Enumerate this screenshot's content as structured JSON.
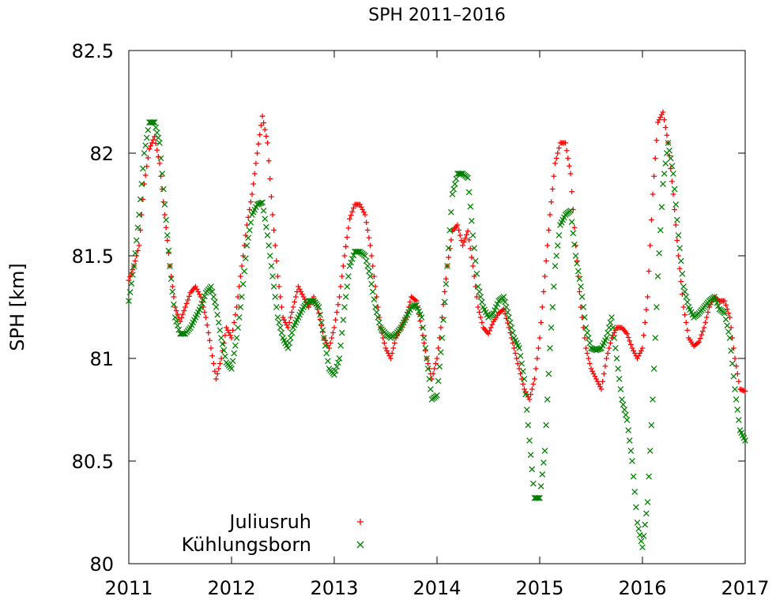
{
  "chart_data": {
    "type": "scatter",
    "title": "SPH 2011–2016",
    "xlabel": "",
    "ylabel": "SPH [km]",
    "xlim": [
      2011,
      2017
    ],
    "ylim": [
      80,
      82.5
    ],
    "x_ticks": [
      "2011",
      "2012",
      "2013",
      "2014",
      "2015",
      "2016",
      "2017"
    ],
    "y_ticks": [
      "80",
      "80.5",
      "81",
      "81.5",
      "82",
      "82.5"
    ],
    "grid": false,
    "legend_position": "bottom-left",
    "series": [
      {
        "name": "Juliusruh",
        "color": "#ff0000",
        "marker": "plus",
        "points": [
          [
            2011.0,
            81.38
          ],
          [
            2011.05,
            81.45
          ],
          [
            2011.1,
            81.55
          ],
          [
            2011.15,
            81.85
          ],
          [
            2011.2,
            82.02
          ],
          [
            2011.25,
            82.08
          ],
          [
            2011.3,
            81.95
          ],
          [
            2011.35,
            81.7
          ],
          [
            2011.4,
            81.45
          ],
          [
            2011.45,
            81.25
          ],
          [
            2011.5,
            81.18
          ],
          [
            2011.55,
            81.25
          ],
          [
            2011.6,
            81.32
          ],
          [
            2011.65,
            81.35
          ],
          [
            2011.7,
            81.3
          ],
          [
            2011.75,
            81.2
          ],
          [
            2011.8,
            81.05
          ],
          [
            2011.85,
            80.9
          ],
          [
            2011.9,
            81.0
          ],
          [
            2011.95,
            81.15
          ],
          [
            2012.0,
            81.1
          ],
          [
            2012.05,
            81.25
          ],
          [
            2012.1,
            81.45
          ],
          [
            2012.15,
            81.65
          ],
          [
            2012.2,
            81.8
          ],
          [
            2012.25,
            82.0
          ],
          [
            2012.3,
            82.18
          ],
          [
            2012.35,
            82.05
          ],
          [
            2012.4,
            81.7
          ],
          [
            2012.45,
            81.4
          ],
          [
            2012.5,
            81.2
          ],
          [
            2012.55,
            81.15
          ],
          [
            2012.6,
            81.25
          ],
          [
            2012.65,
            81.35
          ],
          [
            2012.7,
            81.3
          ],
          [
            2012.75,
            81.25
          ],
          [
            2012.8,
            81.3
          ],
          [
            2012.85,
            81.22
          ],
          [
            2012.9,
            81.1
          ],
          [
            2012.95,
            81.05
          ],
          [
            2013.0,
            81.15
          ],
          [
            2013.05,
            81.3
          ],
          [
            2013.1,
            81.5
          ],
          [
            2013.15,
            81.68
          ],
          [
            2013.2,
            81.75
          ],
          [
            2013.25,
            81.75
          ],
          [
            2013.3,
            81.7
          ],
          [
            2013.35,
            81.55
          ],
          [
            2013.4,
            81.35
          ],
          [
            2013.45,
            81.15
          ],
          [
            2013.5,
            81.05
          ],
          [
            2013.55,
            81.0
          ],
          [
            2013.6,
            81.1
          ],
          [
            2013.65,
            81.15
          ],
          [
            2013.7,
            81.2
          ],
          [
            2013.75,
            81.3
          ],
          [
            2013.8,
            81.28
          ],
          [
            2013.85,
            81.15
          ],
          [
            2013.9,
            81.0
          ],
          [
            2013.95,
            80.9
          ],
          [
            2014.0,
            81.0
          ],
          [
            2014.05,
            81.2
          ],
          [
            2014.1,
            81.45
          ],
          [
            2014.15,
            81.62
          ],
          [
            2014.2,
            81.65
          ],
          [
            2014.25,
            81.55
          ],
          [
            2014.3,
            81.62
          ],
          [
            2014.35,
            81.45
          ],
          [
            2014.4,
            81.25
          ],
          [
            2014.45,
            81.15
          ],
          [
            2014.5,
            81.12
          ],
          [
            2014.55,
            81.18
          ],
          [
            2014.6,
            81.22
          ],
          [
            2014.65,
            81.24
          ],
          [
            2014.7,
            81.15
          ],
          [
            2014.75,
            81.05
          ],
          [
            2014.8,
            80.95
          ],
          [
            2014.85,
            80.85
          ],
          [
            2014.9,
            80.8
          ],
          [
            2014.95,
            80.9
          ],
          [
            2015.0,
            81.1
          ],
          [
            2015.05,
            81.4
          ],
          [
            2015.1,
            81.7
          ],
          [
            2015.15,
            81.95
          ],
          [
            2015.2,
            82.05
          ],
          [
            2015.25,
            82.05
          ],
          [
            2015.3,
            81.9
          ],
          [
            2015.35,
            81.55
          ],
          [
            2015.4,
            81.25
          ],
          [
            2015.45,
            81.05
          ],
          [
            2015.5,
            80.95
          ],
          [
            2015.55,
            80.9
          ],
          [
            2015.6,
            80.85
          ],
          [
            2015.65,
            81.0
          ],
          [
            2015.7,
            81.1
          ],
          [
            2015.75,
            81.15
          ],
          [
            2015.8,
            81.15
          ],
          [
            2015.85,
            81.12
          ],
          [
            2015.9,
            81.05
          ],
          [
            2015.95,
            81.0
          ],
          [
            2016.0,
            81.05
          ],
          [
            2016.05,
            81.3
          ],
          [
            2016.1,
            81.8
          ],
          [
            2016.15,
            82.15
          ],
          [
            2016.2,
            82.2
          ],
          [
            2016.25,
            82.05
          ],
          [
            2016.3,
            81.8
          ],
          [
            2016.35,
            81.5
          ],
          [
            2016.4,
            81.25
          ],
          [
            2016.45,
            81.1
          ],
          [
            2016.5,
            81.06
          ],
          [
            2016.55,
            81.08
          ],
          [
            2016.6,
            81.15
          ],
          [
            2016.65,
            81.25
          ],
          [
            2016.7,
            81.3
          ],
          [
            2016.75,
            81.28
          ],
          [
            2016.8,
            81.28
          ],
          [
            2016.85,
            81.2
          ],
          [
            2016.9,
            81.0
          ],
          [
            2016.95,
            80.85
          ],
          [
            2017.0,
            80.84
          ]
        ]
      },
      {
        "name": "Kühlungsborn",
        "color": "#008000",
        "marker": "cross",
        "points": [
          [
            2011.0,
            81.28
          ],
          [
            2011.05,
            81.45
          ],
          [
            2011.1,
            81.7
          ],
          [
            2011.15,
            82.0
          ],
          [
            2011.2,
            82.15
          ],
          [
            2011.25,
            82.15
          ],
          [
            2011.3,
            82.05
          ],
          [
            2011.35,
            81.75
          ],
          [
            2011.4,
            81.45
          ],
          [
            2011.45,
            81.2
          ],
          [
            2011.5,
            81.12
          ],
          [
            2011.55,
            81.12
          ],
          [
            2011.6,
            81.15
          ],
          [
            2011.65,
            81.2
          ],
          [
            2011.7,
            81.25
          ],
          [
            2011.75,
            81.32
          ],
          [
            2011.8,
            81.35
          ],
          [
            2011.85,
            81.25
          ],
          [
            2011.9,
            81.1
          ],
          [
            2011.95,
            80.98
          ],
          [
            2012.0,
            80.95
          ],
          [
            2012.05,
            81.1
          ],
          [
            2012.1,
            81.3
          ],
          [
            2012.15,
            81.55
          ],
          [
            2012.2,
            81.7
          ],
          [
            2012.25,
            81.75
          ],
          [
            2012.3,
            81.76
          ],
          [
            2012.35,
            81.6
          ],
          [
            2012.4,
            81.4
          ],
          [
            2012.45,
            81.2
          ],
          [
            2012.5,
            81.1
          ],
          [
            2012.55,
            81.05
          ],
          [
            2012.6,
            81.15
          ],
          [
            2012.65,
            81.2
          ],
          [
            2012.7,
            81.25
          ],
          [
            2012.75,
            81.28
          ],
          [
            2012.8,
            81.28
          ],
          [
            2012.85,
            81.25
          ],
          [
            2012.9,
            81.1
          ],
          [
            2012.95,
            80.95
          ],
          [
            2013.0,
            80.92
          ],
          [
            2013.05,
            81.0
          ],
          [
            2013.1,
            81.25
          ],
          [
            2013.15,
            81.45
          ],
          [
            2013.2,
            81.52
          ],
          [
            2013.25,
            81.52
          ],
          [
            2013.3,
            81.5
          ],
          [
            2013.35,
            81.4
          ],
          [
            2013.4,
            81.25
          ],
          [
            2013.45,
            81.15
          ],
          [
            2013.5,
            81.12
          ],
          [
            2013.55,
            81.1
          ],
          [
            2013.6,
            81.12
          ],
          [
            2013.65,
            81.15
          ],
          [
            2013.7,
            81.2
          ],
          [
            2013.75,
            81.25
          ],
          [
            2013.8,
            81.26
          ],
          [
            2013.85,
            81.2
          ],
          [
            2013.9,
            81.0
          ],
          [
            2013.95,
            80.8
          ],
          [
            2014.0,
            80.82
          ],
          [
            2014.05,
            81.1
          ],
          [
            2014.1,
            81.45
          ],
          [
            2014.15,
            81.8
          ],
          [
            2014.2,
            81.9
          ],
          [
            2014.25,
            81.9
          ],
          [
            2014.3,
            81.88
          ],
          [
            2014.35,
            81.6
          ],
          [
            2014.4,
            81.35
          ],
          [
            2014.45,
            81.25
          ],
          [
            2014.5,
            81.2
          ],
          [
            2014.55,
            81.22
          ],
          [
            2014.6,
            81.28
          ],
          [
            2014.65,
            81.3
          ],
          [
            2014.7,
            81.2
          ],
          [
            2014.75,
            81.1
          ],
          [
            2014.8,
            81.05
          ],
          [
            2014.85,
            80.9
          ],
          [
            2014.9,
            80.6
          ],
          [
            2014.95,
            80.32
          ],
          [
            2015.0,
            80.32
          ],
          [
            2015.05,
            80.55
          ],
          [
            2015.1,
            81.05
          ],
          [
            2015.15,
            81.45
          ],
          [
            2015.2,
            81.65
          ],
          [
            2015.25,
            81.7
          ],
          [
            2015.3,
            81.72
          ],
          [
            2015.35,
            81.5
          ],
          [
            2015.4,
            81.35
          ],
          [
            2015.45,
            81.15
          ],
          [
            2015.5,
            81.05
          ],
          [
            2015.55,
            81.04
          ],
          [
            2015.6,
            81.05
          ],
          [
            2015.65,
            81.1
          ],
          [
            2015.7,
            81.2
          ],
          [
            2015.75,
            81.0
          ],
          [
            2015.8,
            80.8
          ],
          [
            2015.85,
            80.7
          ],
          [
            2015.9,
            80.5
          ],
          [
            2015.95,
            80.2
          ],
          [
            2016.0,
            80.08
          ],
          [
            2016.05,
            80.3
          ],
          [
            2016.1,
            80.8
          ],
          [
            2016.15,
            81.4
          ],
          [
            2016.2,
            81.85
          ],
          [
            2016.25,
            82.05
          ],
          [
            2016.3,
            81.9
          ],
          [
            2016.35,
            81.6
          ],
          [
            2016.4,
            81.35
          ],
          [
            2016.45,
            81.25
          ],
          [
            2016.5,
            81.2
          ],
          [
            2016.55,
            81.22
          ],
          [
            2016.6,
            81.25
          ],
          [
            2016.65,
            81.28
          ],
          [
            2016.7,
            81.3
          ],
          [
            2016.75,
            81.24
          ],
          [
            2016.8,
            81.22
          ],
          [
            2016.85,
            81.1
          ],
          [
            2016.9,
            80.85
          ],
          [
            2016.95,
            80.65
          ],
          [
            2017.0,
            80.6
          ]
        ]
      }
    ]
  }
}
